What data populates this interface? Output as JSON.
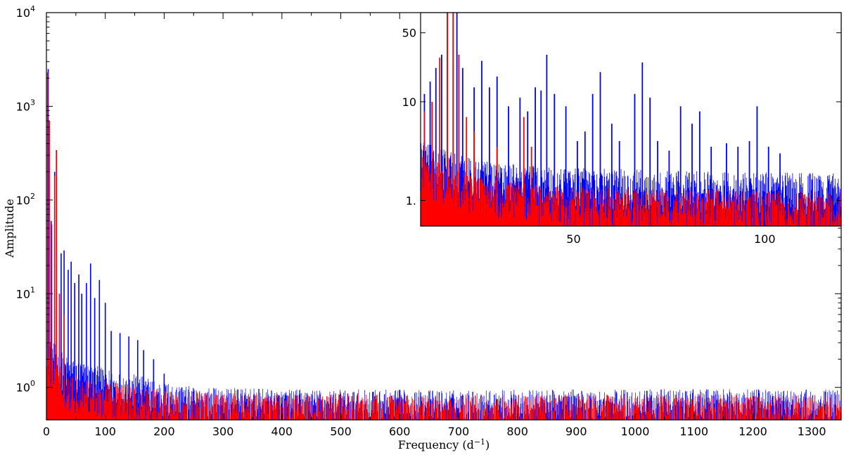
{
  "chart_data": [
    {
      "type": "line",
      "xlabel": "Frequency (d",
      "xlabel_sup": "−1",
      "xlabel_end": ")",
      "ylabel": "Amplitude",
      "xlim": [
        0,
        1350
      ],
      "ylim": [
        0.45,
        10000
      ],
      "yscale": "log",
      "x_ticks": [
        0,
        100,
        200,
        300,
        400,
        500,
        600,
        700,
        800,
        900,
        1000,
        1100,
        1200,
        1300
      ],
      "y_ticks": [
        {
          "value": 1,
          "base": "10",
          "exp": "0"
        },
        {
          "value": 10,
          "base": "10",
          "exp": "1"
        },
        {
          "value": 100,
          "base": "10",
          "exp": "2"
        },
        {
          "value": 1000,
          "base": "10",
          "exp": "3"
        },
        {
          "value": 10000,
          "base": "10",
          "exp": "4"
        }
      ],
      "grid": false,
      "series": [
        {
          "color": "#0000ff",
          "noise_floor": [
            [
              0,
              3.0
            ],
            [
              10,
              2.2
            ],
            [
              20,
              1.8
            ],
            [
              40,
              1.4
            ],
            [
              60,
              1.3
            ],
            [
              100,
              1.1
            ],
            [
              150,
              0.95
            ],
            [
              200,
              0.8
            ],
            [
              250,
              0.7
            ],
            [
              400,
              0.66
            ],
            [
              700,
              0.65
            ],
            [
              1000,
              0.66
            ],
            [
              1350,
              0.66
            ]
          ],
          "peaks": [
            {
              "x": 3,
              "y": 2500
            },
            {
              "x": 8,
              "y": 60
            },
            {
              "x": 14,
              "y": 200
            },
            {
              "x": 17,
              "y": 340
            },
            {
              "x": 25,
              "y": 27
            },
            {
              "x": 30,
              "y": 29
            },
            {
              "x": 37,
              "y": 18
            },
            {
              "x": 42,
              "y": 22
            },
            {
              "x": 48,
              "y": 13
            },
            {
              "x": 55,
              "y": 16
            },
            {
              "x": 60,
              "y": 10
            },
            {
              "x": 68,
              "y": 13
            },
            {
              "x": 75,
              "y": 21
            },
            {
              "x": 82,
              "y": 9
            },
            {
              "x": 90,
              "y": 14
            },
            {
              "x": 100,
              "y": 8
            },
            {
              "x": 110,
              "y": 4
            },
            {
              "x": 125,
              "y": 3.8
            },
            {
              "x": 140,
              "y": 3.5
            },
            {
              "x": 155,
              "y": 3.2
            },
            {
              "x": 165,
              "y": 2.5
            },
            {
              "x": 182,
              "y": 2.0
            },
            {
              "x": 200,
              "y": 1.4
            },
            {
              "x": 230,
              "y": 1.0
            },
            {
              "x": 325,
              "y": 0.95
            },
            {
              "x": 555,
              "y": 0.9
            },
            {
              "x": 1020,
              "y": 0.92
            },
            {
              "x": 1323,
              "y": 0.9
            }
          ]
        },
        {
          "color": "#ff0000",
          "noise_floor": [
            [
              0,
              2.0
            ],
            [
              10,
              1.5
            ],
            [
              20,
              1.2
            ],
            [
              40,
              1.0
            ],
            [
              60,
              0.9
            ],
            [
              100,
              0.8
            ],
            [
              150,
              0.72
            ],
            [
              200,
              0.65
            ],
            [
              300,
              0.6
            ],
            [
              700,
              0.58
            ],
            [
              1000,
              0.58
            ],
            [
              1350,
              0.58
            ]
          ],
          "peaks": [
            {
              "x": 2,
              "y": 2300
            },
            {
              "x": 5,
              "y": 700
            },
            {
              "x": 9,
              "y": 55
            },
            {
              "x": 14,
              "y": 180
            },
            {
              "x": 17,
              "y": 330
            },
            {
              "x": 22,
              "y": 10
            },
            {
              "x": 30,
              "y": 6
            }
          ]
        }
      ]
    },
    {
      "type": "line",
      "inset": true,
      "xlim": [
        10,
        120
      ],
      "ylim": [
        0.55,
        80
      ],
      "yscale": "log",
      "x_ticks": [
        50,
        100
      ],
      "y_ticks": [
        {
          "value": 1,
          "label": "1."
        },
        {
          "value": 10,
          "label": "10"
        },
        {
          "value": 50,
          "label": "50"
        }
      ],
      "grid": false,
      "series": [
        {
          "color": "#0000ff",
          "noise_floor": [
            [
              10,
              3.0
            ],
            [
              14,
              2.5
            ],
            [
              20,
              2.0
            ],
            [
              25,
              1.8
            ],
            [
              35,
              1.6
            ],
            [
              50,
              1.5
            ],
            [
              70,
              1.4
            ],
            [
              90,
              1.35
            ],
            [
              120,
              1.3
            ]
          ],
          "peaks": [
            {
              "x": 11,
              "y": 12
            },
            {
              "x": 12.5,
              "y": 16
            },
            {
              "x": 14,
              "y": 22
            },
            {
              "x": 15.5,
              "y": 30
            },
            {
              "x": 17,
              "y": 80
            },
            {
              "x": 19.5,
              "y": 80
            },
            {
              "x": 21,
              "y": 22
            },
            {
              "x": 24,
              "y": 14
            },
            {
              "x": 26,
              "y": 26
            },
            {
              "x": 28,
              "y": 14
            },
            {
              "x": 30,
              "y": 18
            },
            {
              "x": 33,
              "y": 9
            },
            {
              "x": 36,
              "y": 11
            },
            {
              "x": 38,
              "y": 8
            },
            {
              "x": 40,
              "y": 14
            },
            {
              "x": 41.5,
              "y": 13
            },
            {
              "x": 43,
              "y": 30
            },
            {
              "x": 45,
              "y": 12
            },
            {
              "x": 48,
              "y": 9
            },
            {
              "x": 51,
              "y": 4
            },
            {
              "x": 53,
              "y": 5
            },
            {
              "x": 55,
              "y": 12
            },
            {
              "x": 57,
              "y": 20
            },
            {
              "x": 60,
              "y": 6
            },
            {
              "x": 62,
              "y": 4
            },
            {
              "x": 66,
              "y": 12
            },
            {
              "x": 68,
              "y": 25
            },
            {
              "x": 70,
              "y": 11
            },
            {
              "x": 72,
              "y": 4
            },
            {
              "x": 75,
              "y": 3.2
            },
            {
              "x": 78,
              "y": 9
            },
            {
              "x": 81,
              "y": 6
            },
            {
              "x": 83,
              "y": 8
            },
            {
              "x": 86,
              "y": 3.5
            },
            {
              "x": 90,
              "y": 3.8
            },
            {
              "x": 93,
              "y": 3.5
            },
            {
              "x": 96,
              "y": 4
            },
            {
              "x": 98,
              "y": 9
            },
            {
              "x": 101,
              "y": 3.5
            },
            {
              "x": 104,
              "y": 3
            }
          ]
        },
        {
          "color": "#ff0000",
          "noise_floor": [
            [
              10,
              2.0
            ],
            [
              14,
              1.8
            ],
            [
              20,
              1.4
            ],
            [
              25,
              1.2
            ],
            [
              35,
              1.05
            ],
            [
              50,
              0.95
            ],
            [
              70,
              0.9
            ],
            [
              90,
              0.88
            ],
            [
              120,
              0.85
            ]
          ],
          "peaks": [
            {
              "x": 11,
              "y": 8
            },
            {
              "x": 13,
              "y": 10
            },
            {
              "x": 15,
              "y": 28
            },
            {
              "x": 17,
              "y": 80
            },
            {
              "x": 18.5,
              "y": 80
            },
            {
              "x": 20,
              "y": 30
            },
            {
              "x": 22,
              "y": 7
            },
            {
              "x": 24,
              "y": 5
            },
            {
              "x": 30,
              "y": 3.5
            },
            {
              "x": 37,
              "y": 7
            },
            {
              "x": 39,
              "y": 3.5
            }
          ]
        }
      ]
    }
  ]
}
